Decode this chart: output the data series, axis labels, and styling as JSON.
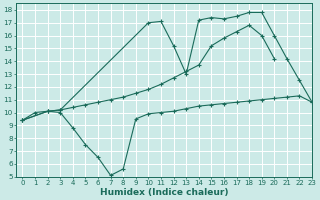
{
  "xlabel": "Humidex (Indice chaleur)",
  "bg_color": "#cceae7",
  "grid_color": "#ffffff",
  "line_color": "#1a6b5a",
  "xlim": [
    -0.5,
    23
  ],
  "ylim": [
    5,
    18.5
  ],
  "xticks": [
    0,
    1,
    2,
    3,
    4,
    5,
    6,
    7,
    8,
    9,
    10,
    11,
    12,
    13,
    14,
    15,
    16,
    17,
    18,
    19,
    20,
    21,
    22,
    23
  ],
  "yticks": [
    5,
    6,
    7,
    8,
    9,
    10,
    11,
    12,
    13,
    14,
    15,
    16,
    17,
    18
  ],
  "series1_x": [
    0,
    1,
    2,
    3,
    4,
    5,
    6,
    7,
    8,
    9,
    10,
    11,
    12,
    13,
    14,
    15,
    16,
    17,
    18,
    19,
    20,
    21,
    22,
    23
  ],
  "series1_y": [
    9.4,
    10.0,
    10.1,
    10.0,
    8.8,
    7.5,
    6.5,
    5.1,
    5.6,
    9.5,
    9.9,
    10.0,
    10.1,
    10.3,
    10.5,
    10.6,
    10.7,
    10.8,
    10.9,
    11.0,
    11.1,
    11.2,
    11.3,
    10.8
  ],
  "series2_x": [
    0,
    2,
    3,
    4,
    5,
    6,
    7,
    8,
    9,
    10,
    11,
    12,
    13,
    14,
    15,
    16,
    17,
    18,
    19,
    20
  ],
  "series2_y": [
    9.4,
    10.1,
    10.2,
    10.4,
    10.6,
    10.8,
    11.0,
    11.2,
    11.5,
    11.8,
    12.2,
    12.7,
    13.2,
    13.7,
    15.2,
    15.8,
    16.3,
    16.8,
    16.0,
    14.2
  ],
  "series3_x": [
    0,
    2,
    3,
    10,
    11,
    12,
    13,
    14,
    15,
    16,
    17,
    18,
    19,
    20,
    21,
    22,
    23
  ],
  "series3_y": [
    9.4,
    10.1,
    10.2,
    17.0,
    17.1,
    15.2,
    13.0,
    17.2,
    17.4,
    17.3,
    17.5,
    17.8,
    17.8,
    16.0,
    14.2,
    12.5,
    10.8
  ]
}
